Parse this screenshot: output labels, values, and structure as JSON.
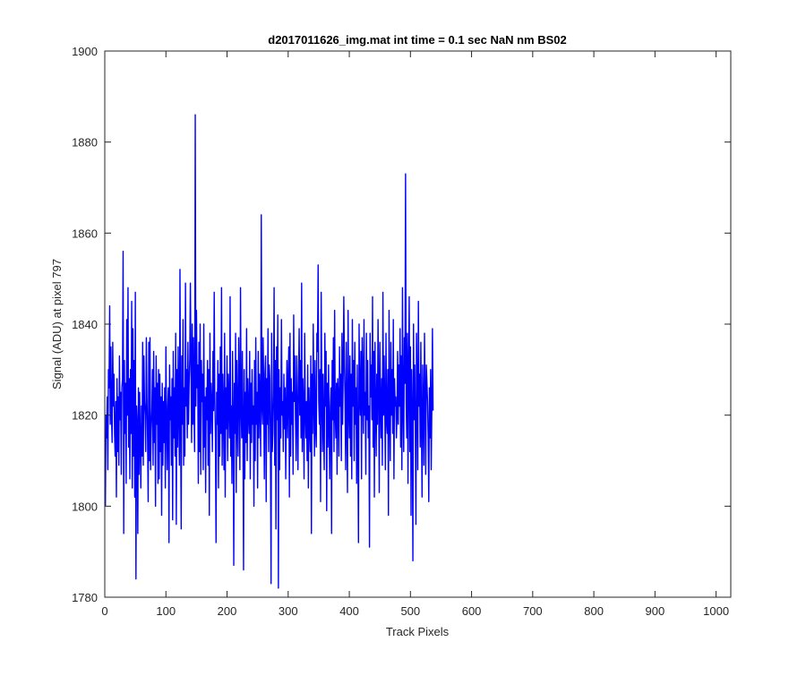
{
  "chart_data": {
    "type": "line",
    "title": "d2017011626_img.mat int time = 0.1 sec  NaN nm BS02",
    "xlabel": "Track Pixels",
    "ylabel": "Signal (ADU) at pixel 797",
    "xlim": [
      0,
      1024
    ],
    "ylim": [
      1780,
      1900
    ],
    "xticks": [
      0,
      100,
      200,
      300,
      400,
      500,
      600,
      700,
      800,
      900,
      1000
    ],
    "yticks": [
      1780,
      1800,
      1820,
      1840,
      1860,
      1880,
      1900
    ],
    "grid": false,
    "legend": "none",
    "series": [
      {
        "color": "#0000ff",
        "x_start": 1,
        "x_step": 1,
        "values": [
          1800,
          1820,
          1815,
          1824,
          1808,
          1830,
          1826,
          1844,
          1818,
          1835,
          1820,
          1814,
          1836,
          1822,
          1829,
          1816,
          1811,
          1823,
          1802,
          1828,
          1812,
          1824,
          1809,
          1833,
          1819,
          1825,
          1807,
          1826,
          1828,
          1856,
          1794,
          1832,
          1816,
          1827,
          1805,
          1841,
          1820,
          1848,
          1813,
          1828,
          1806,
          1830,
          1816,
          1845,
          1804,
          1839,
          1811,
          1832,
          1802,
          1847,
          1784,
          1822,
          1818,
          1794,
          1826,
          1807,
          1825,
          1814,
          1804,
          1822,
          1811,
          1836,
          1809,
          1833,
          1823,
          1820,
          1812,
          1837,
          1824,
          1815,
          1801,
          1836,
          1810,
          1837,
          1808,
          1817,
          1821,
          1830,
          1809,
          1834,
          1814,
          1826,
          1800,
          1833,
          1818,
          1827,
          1805,
          1830,
          1806,
          1829,
          1812,
          1824,
          1798,
          1827,
          1809,
          1823,
          1814,
          1826,
          1804,
          1835,
          1819,
          1808,
          1822,
          1826,
          1792,
          1831,
          1819,
          1824,
          1809,
          1828,
          1797,
          1834,
          1815,
          1826,
          1811,
          1838,
          1796,
          1830,
          1813,
          1835,
          1820,
          1809,
          1852,
          1820,
          1795,
          1833,
          1818,
          1841,
          1809,
          1826,
          1811,
          1849,
          1822,
          1830,
          1815,
          1836,
          1818,
          1827,
          1832,
          1849,
          1831,
          1814,
          1840,
          1818,
          1837,
          1820,
          1812,
          1886,
          1822,
          1843,
          1826,
          1831,
          1805,
          1836,
          1812,
          1840,
          1807,
          1832,
          1823,
          1829,
          1808,
          1840,
          1813,
          1824,
          1803,
          1826,
          1819,
          1832,
          1809,
          1830,
          1798,
          1838,
          1816,
          1827,
          1822,
          1812,
          1834,
          1821,
          1847,
          1824,
          1815,
          1792,
          1825,
          1818,
          1832,
          1804,
          1829,
          1811,
          1835,
          1816,
          1848,
          1809,
          1829,
          1821,
          1808,
          1838,
          1802,
          1826,
          1817,
          1833,
          1810,
          1829,
          1823,
          1815,
          1846,
          1811,
          1822,
          1805,
          1834,
          1819,
          1787,
          1827,
          1816,
          1838,
          1803,
          1832,
          1820,
          1811,
          1837,
          1826,
          1808,
          1848,
          1822,
          1815,
          1834,
          1818,
          1786,
          1830,
          1806,
          1825,
          1814,
          1839,
          1810,
          1828,
          1820,
          1816,
          1834,
          1806,
          1827,
          1814,
          1830,
          1818,
          1822,
          1800,
          1832,
          1810,
          1837,
          1818,
          1825,
          1804,
          1834,
          1815,
          1829,
          1822,
          1811,
          1864,
          1822,
          1818,
          1837,
          1826,
          1806,
          1829,
          1833,
          1801,
          1828,
          1818,
          1839,
          1812,
          1831,
          1828,
          1813,
          1783,
          1838,
          1812,
          1816,
          1825,
          1848,
          1809,
          1832,
          1795,
          1835,
          1819,
          1842,
          1782,
          1830,
          1808,
          1826,
          1815,
          1841,
          1820,
          1823,
          1812,
          1829,
          1817,
          1826,
          1806,
          1822,
          1832,
          1815,
          1827,
          1835,
          1802,
          1838,
          1811,
          1828,
          1818,
          1825,
          1807,
          1842,
          1823,
          1833,
          1819,
          1810,
          1833,
          1821,
          1808,
          1828,
          1839,
          1820,
          1832,
          1815,
          1849,
          1812,
          1828,
          1822,
          1806,
          1838,
          1821,
          1815,
          1823,
          1810,
          1831,
          1804,
          1826,
          1818,
          1812,
          1833,
          1794,
          1829,
          1816,
          1840,
          1823,
          1811,
          1832,
          1817,
          1813,
          1838,
          1834,
          1853,
          1823,
          1818,
          1830,
          1801,
          1847,
          1826,
          1812,
          1829,
          1817,
          1808,
          1838,
          1822,
          1834,
          1799,
          1827,
          1813,
          1831,
          1818,
          1806,
          1822,
          1826,
          1794,
          1832,
          1819,
          1837,
          1812,
          1843,
          1820,
          1815,
          1827,
          1807,
          1828,
          1824,
          1811,
          1835,
          1822,
          1829,
          1810,
          1838,
          1818,
          1829,
          1846,
          1831,
          1824,
          1808,
          1836,
          1819,
          1803,
          1843,
          1822,
          1815,
          1833,
          1811,
          1829,
          1806,
          1841,
          1822,
          1832,
          1810,
          1836,
          1818,
          1826,
          1805,
          1831,
          1814,
          1792,
          1840,
          1825,
          1820,
          1834,
          1806,
          1837,
          1828,
          1816,
          1841,
          1820,
          1825,
          1807,
          1838,
          1819,
          1832,
          1815,
          1822,
          1791,
          1838,
          1824,
          1831,
          1819,
          1846,
          1813,
          1834,
          1802,
          1836,
          1822,
          1811,
          1829,
          1818,
          1841,
          1826,
          1803,
          1836,
          1823,
          1815,
          1828,
          1809,
          1847,
          1820,
          1833,
          1822,
          1808,
          1838,
          1819,
          1816,
          1830,
          1798,
          1843,
          1821,
          1810,
          1836,
          1820,
          1830,
          1816,
          1841,
          1806,
          1828,
          1822,
          1824,
          1815,
          1820,
          1834,
          1818,
          1831,
          1822,
          1839,
          1813,
          1833,
          1808,
          1848,
          1822,
          1812,
          1837,
          1827,
          1873,
          1823,
          1815,
          1838,
          1805,
          1829,
          1846,
          1812,
          1835,
          1798,
          1830,
          1820,
          1788,
          1840,
          1819,
          1831,
          1817,
          1796,
          1838,
          1826,
          1808,
          1845,
          1822,
          1829,
          1813,
          1836,
          1818,
          1802,
          1831,
          1822,
          1809,
          1838,
          1825,
          1807,
          1831,
          1827,
          1823,
          1815,
          1801,
          1826,
          1815,
          1830,
          1808,
          1822,
          1839,
          1821
        ]
      }
    ]
  }
}
